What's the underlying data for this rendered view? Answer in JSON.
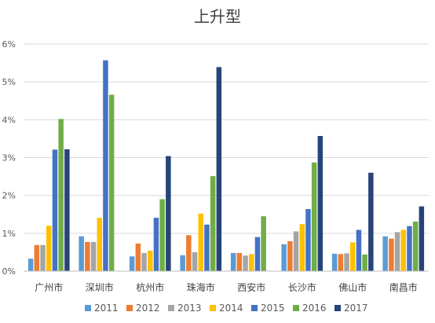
{
  "chart_data": {
    "type": "bar",
    "title": "上升型",
    "xlabel": "",
    "ylabel": "",
    "ylim": [
      0,
      6
    ],
    "yticks": [
      "0%",
      "1%",
      "2%",
      "3%",
      "4%",
      "5%",
      "6%"
    ],
    "grid": true,
    "legend_position": "bottom",
    "categories": [
      "广州市",
      "深圳市",
      "杭州市",
      "珠海市",
      "西安市",
      "长沙市",
      "佛山市",
      "南昌市"
    ],
    "series": [
      {
        "name": "2011",
        "color": "#5B9BD5",
        "values": [
          0.33,
          0.92,
          0.39,
          0.42,
          0.48,
          0.71,
          0.46,
          0.92
        ]
      },
      {
        "name": "2012",
        "color": "#ED7D31",
        "values": [
          0.69,
          0.77,
          0.73,
          0.95,
          0.48,
          0.79,
          0.45,
          0.86
        ]
      },
      {
        "name": "2013",
        "color": "#A5A5A5",
        "values": [
          0.69,
          0.77,
          0.48,
          0.5,
          0.41,
          1.05,
          0.47,
          1.03
        ]
      },
      {
        "name": "2014",
        "color": "#FFC000",
        "values": [
          1.2,
          1.41,
          0.54,
          1.52,
          0.45,
          1.24,
          0.76,
          1.09
        ]
      },
      {
        "name": "2015",
        "color": "#4472C4",
        "values": [
          3.21,
          5.57,
          1.41,
          1.23,
          0.9,
          1.64,
          1.09,
          1.19
        ]
      },
      {
        "name": "2016",
        "color": "#70AD47",
        "values": [
          4.02,
          4.66,
          1.9,
          2.51,
          1.45,
          2.87,
          0.44,
          1.31
        ]
      },
      {
        "name": "2017",
        "color": "#264478",
        "values": [
          3.22,
          null,
          3.04,
          5.39,
          null,
          3.57,
          2.6,
          1.71
        ]
      }
    ]
  }
}
